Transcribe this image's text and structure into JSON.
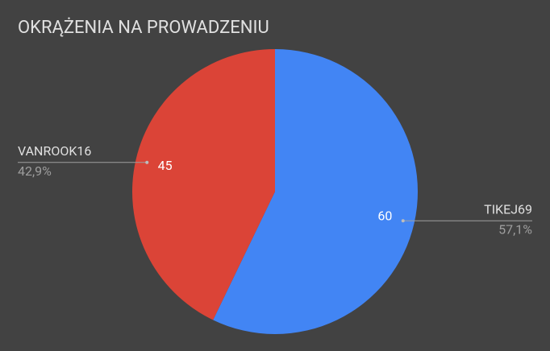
{
  "chart_data": {
    "type": "pie",
    "title": "OKRĄŻENIA NA PROWADZENIU",
    "categories": [
      "TIKEJ69",
      "VANROOK16"
    ],
    "values": [
      60,
      45
    ],
    "percent_labels": [
      "57,1%",
      "42,9%"
    ],
    "colors": [
      "#4285f4",
      "#db4437"
    ]
  }
}
